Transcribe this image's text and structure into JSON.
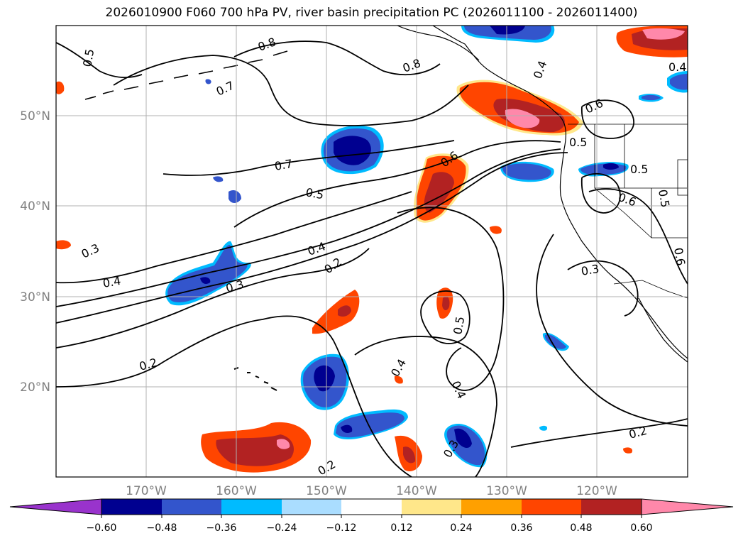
{
  "title": "2026010900 F060 700 hPa PV, river basin precipitation PC (2026011100 - 2026011400)",
  "map": {
    "lon_range": [
      -180,
      -110
    ],
    "lat_range": [
      10,
      60
    ],
    "lon_ticks": [
      {
        "value": -170,
        "label": "170°W"
      },
      {
        "value": -160,
        "label": "160°W"
      },
      {
        "value": -150,
        "label": "150°W"
      },
      {
        "value": -140,
        "label": "140°W"
      },
      {
        "value": -130,
        "label": "130°W"
      },
      {
        "value": -120,
        "label": "120°W"
      }
    ],
    "lat_ticks": [
      {
        "value": 20,
        "label": "20°N"
      },
      {
        "value": 30,
        "label": "30°N"
      },
      {
        "value": 40,
        "label": "40°N"
      },
      {
        "value": 50,
        "label": "50°N"
      }
    ],
    "grid_lines": true
  },
  "pv_contours": {
    "label_values": [
      "0.5",
      "0.8",
      "0.7",
      "0.8",
      "0.4",
      "0.4",
      "0.6",
      "0.7",
      "0.5",
      "0.6",
      "0.5",
      "0.5",
      "0.6",
      "0.5",
      "0.3",
      "0.4",
      "0.4",
      "0.2",
      "0.3",
      "0.3",
      "0.6",
      "0.5",
      "0.2",
      "0.4",
      "0.4",
      "0.3",
      "0.2",
      "0.2"
    ],
    "color": "#000000"
  },
  "colorbar": {
    "levels": [
      -0.6,
      -0.48,
      -0.36,
      -0.24,
      -0.12,
      0.12,
      0.24,
      0.36,
      0.48,
      0.6
    ],
    "tick_labels": [
      "−0.60",
      "−0.48",
      "−0.36",
      "−0.24",
      "−0.12",
      "0.12",
      "0.24",
      "0.36",
      "0.48",
      "0.60"
    ],
    "colors": [
      "#9933cc",
      "#000090",
      "#3355cc",
      "#00bbff",
      "#aaddff",
      "#ffffff",
      "#ffe78a",
      "#ffa000",
      "#ff4500",
      "#b22222",
      "#ff88aa"
    ],
    "extend": "both"
  }
}
